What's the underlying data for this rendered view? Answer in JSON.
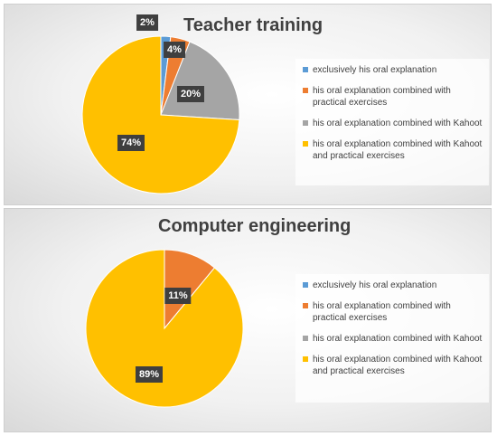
{
  "chart_data": [
    {
      "type": "pie",
      "title": "Teacher training",
      "legend_position": "right",
      "slices": [
        {
          "name": "exclusively his oral explanation",
          "value": 2,
          "label": "2%",
          "color": "#5b9bd5"
        },
        {
          "name": " his oral explanation combined with practical exercises",
          "value": 4,
          "label": "4%",
          "color": "#ed7d31"
        },
        {
          "name": "his oral explanation combined with Kahoot",
          "value": 20,
          "label": "20%",
          "color": "#a5a5a5"
        },
        {
          "name": "his oral explanation combined with Kahoot and practical exercises",
          "value": 74,
          "label": "74%",
          "color": "#ffc000"
        }
      ]
    },
    {
      "type": "pie",
      "title": "Computer engineering",
      "legend_position": "right",
      "slices": [
        {
          "name": "exclusively his oral explanation",
          "value": 0,
          "label": "",
          "color": "#5b9bd5"
        },
        {
          "name": " his oral explanation combined with practical exercises",
          "value": 11,
          "label": "11%",
          "color": "#ed7d31"
        },
        {
          "name": "his oral explanation combined with Kahoot",
          "value": 0,
          "label": "",
          "color": "#a5a5a5"
        },
        {
          "name": "his oral explanation combined with Kahoot and practical exercises",
          "value": 89,
          "label": "89%",
          "color": "#ffc000"
        }
      ]
    }
  ]
}
